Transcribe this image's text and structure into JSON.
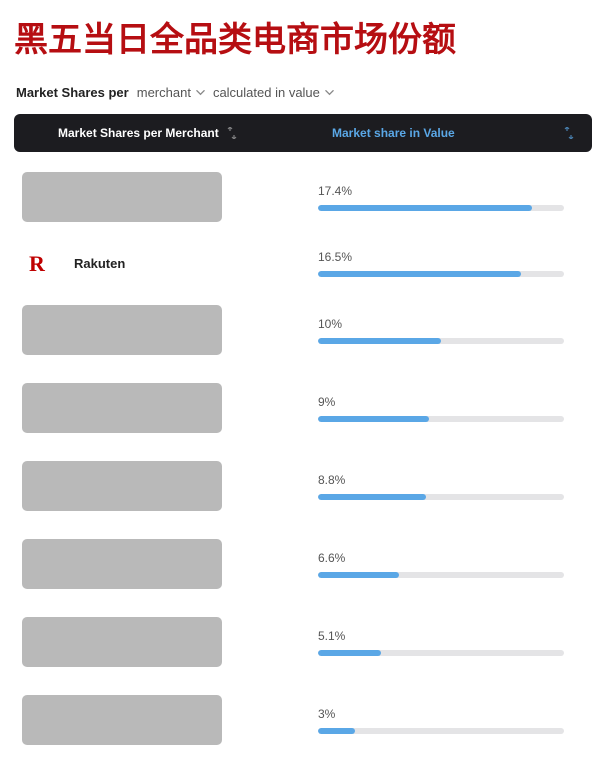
{
  "title": "黑五当日全品类电商市场份额",
  "title_color": "#b60e12",
  "filter": {
    "prefix": "Market Shares per",
    "dropdown1": "merchant",
    "dropdown2": "calculated in value"
  },
  "header": {
    "col_merchant": "Market Shares per Merchant",
    "col_value": "Market share in Value",
    "bg": "#1c1c20",
    "value_color": "#5aa7e6"
  },
  "chart": {
    "bar_max_pct": 20,
    "bar_color": "#5aa7e6",
    "track_color": "#e4e4e6",
    "placeholder_color": "#b9b9b9"
  },
  "rows": [
    {
      "type": "placeholder",
      "value": 17.4,
      "label": "17.4%"
    },
    {
      "type": "merchant",
      "name": "Rakuten",
      "logo": "R",
      "logo_color": "#bf0000",
      "value": 16.5,
      "label": "16.5%"
    },
    {
      "type": "placeholder",
      "value": 10,
      "label": "10%"
    },
    {
      "type": "placeholder",
      "value": 9,
      "label": "9%"
    },
    {
      "type": "placeholder",
      "value": 8.8,
      "label": "8.8%"
    },
    {
      "type": "placeholder",
      "value": 6.6,
      "label": "6.6%"
    },
    {
      "type": "placeholder",
      "value": 5.1,
      "label": "5.1%"
    },
    {
      "type": "placeholder",
      "value": 3,
      "label": "3%"
    }
  ]
}
